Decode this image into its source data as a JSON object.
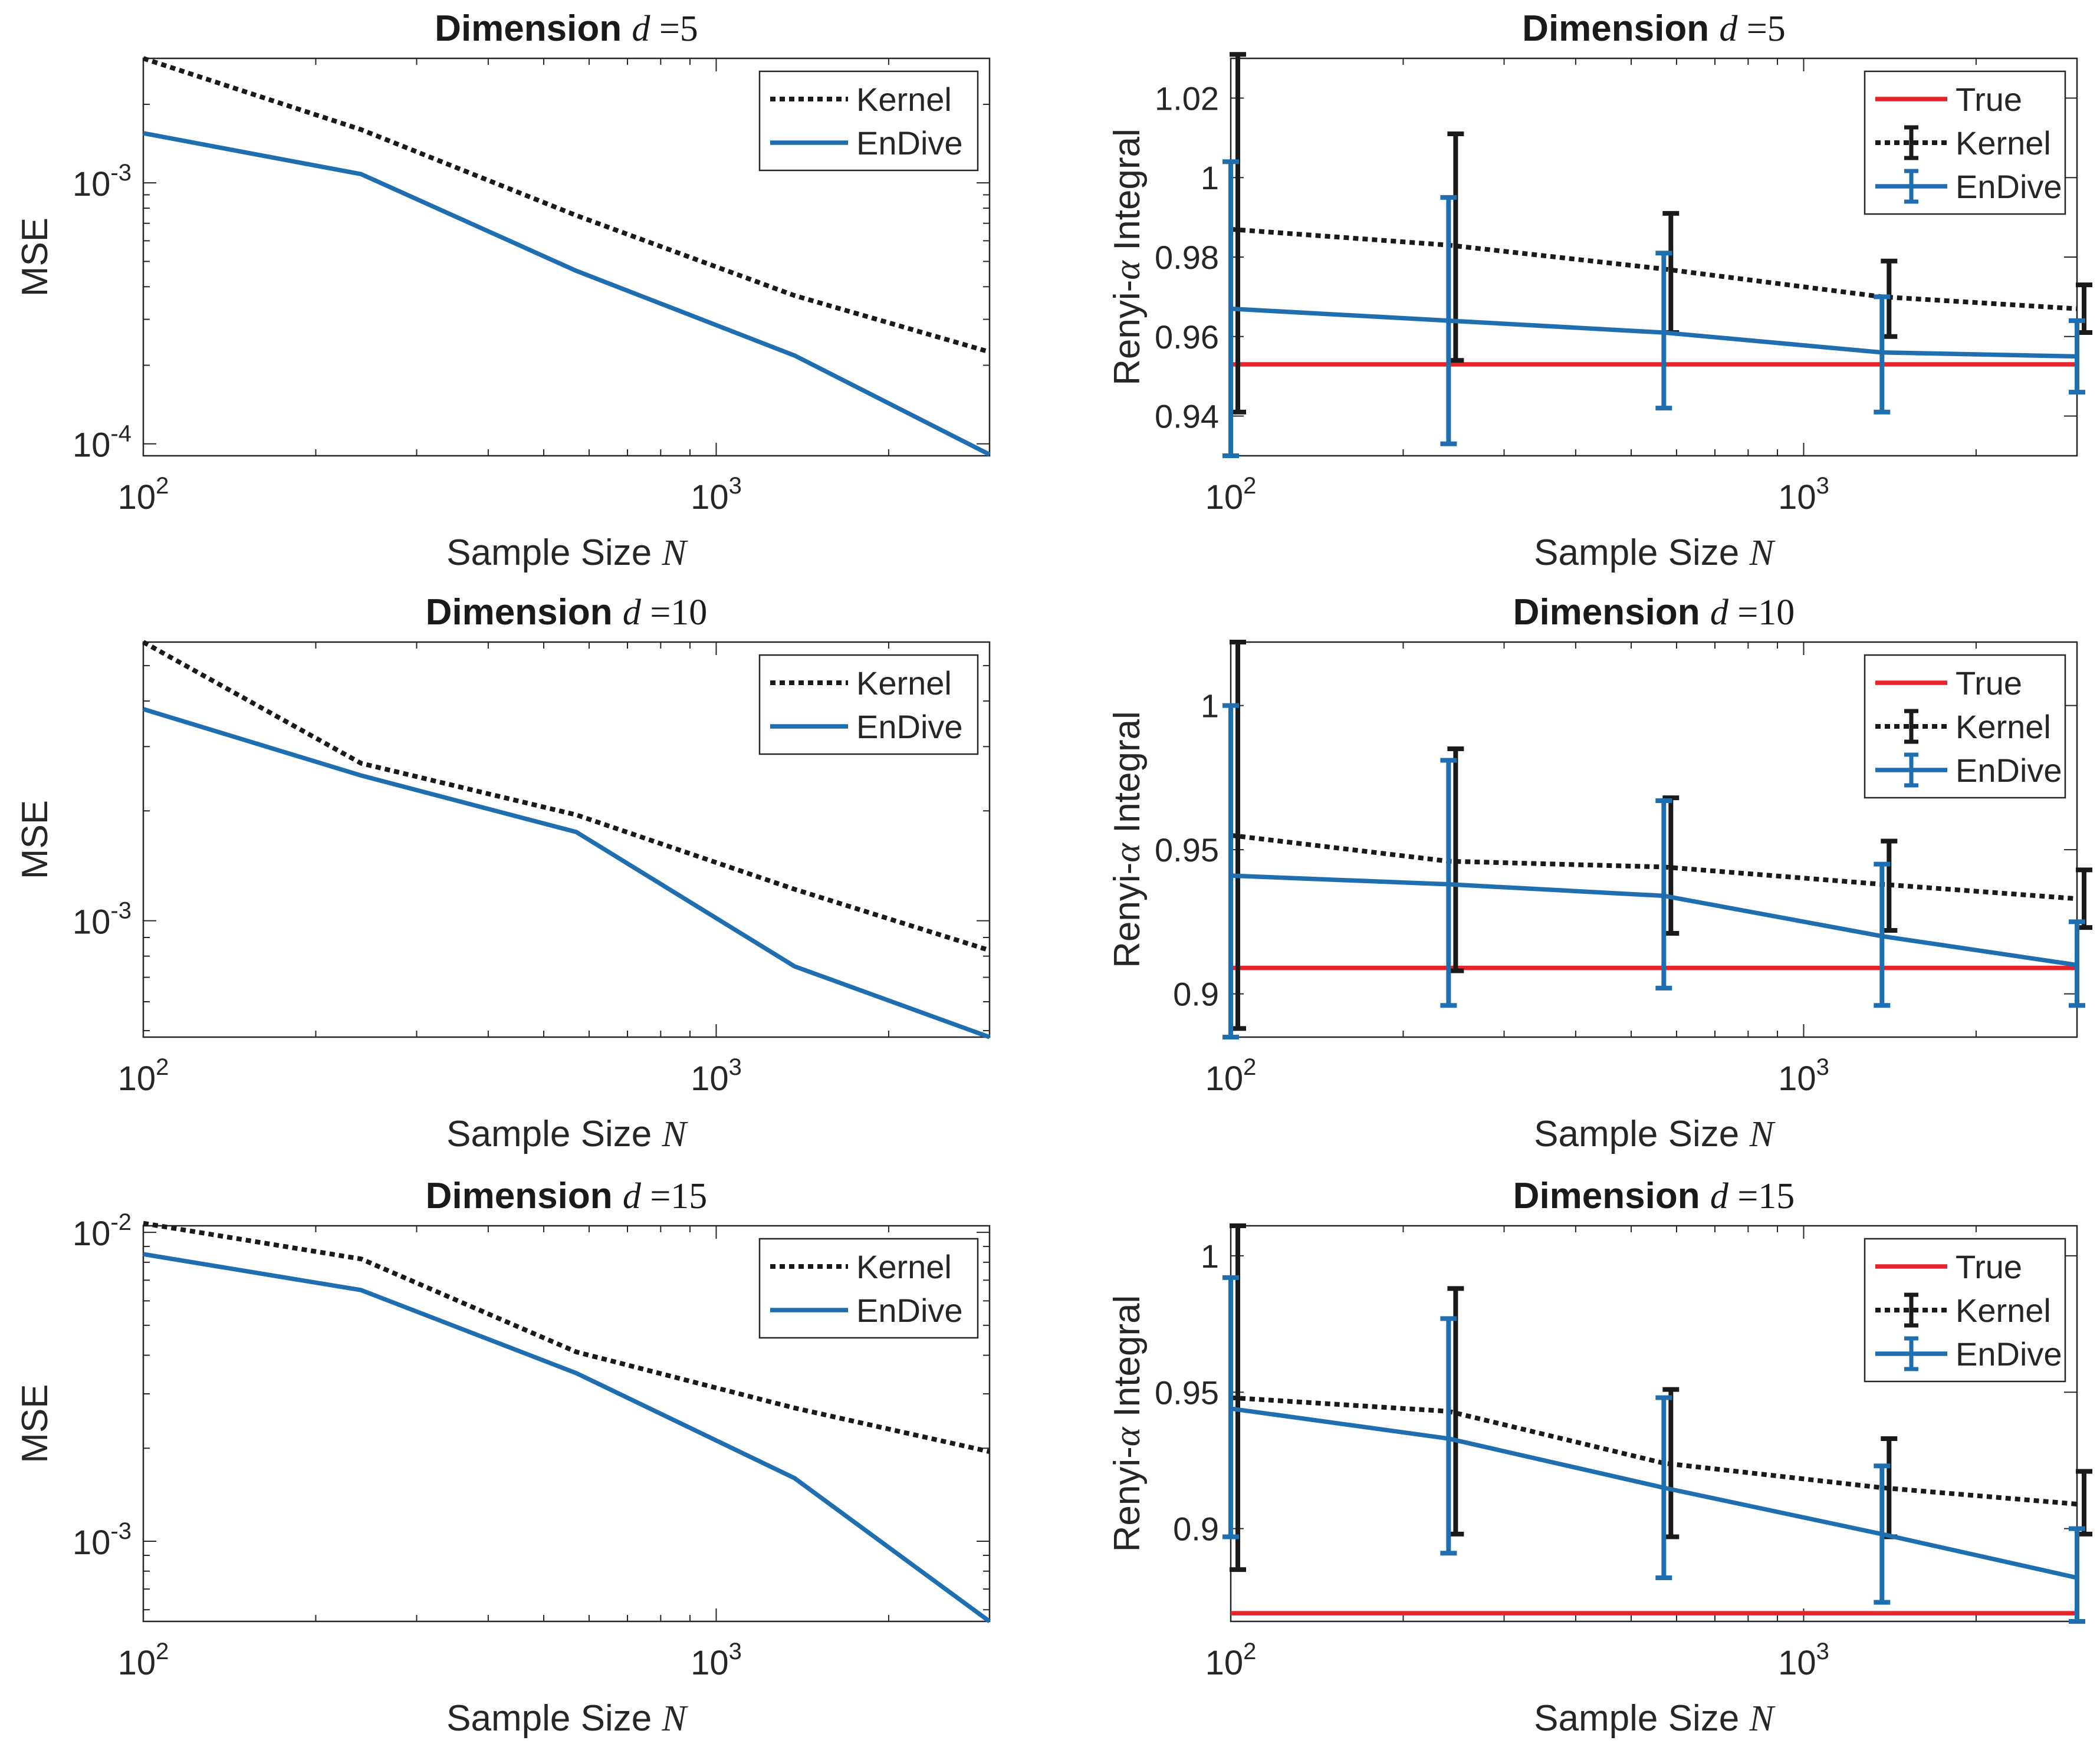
{
  "colors": {
    "true": "#e8242a",
    "kernel": "#1a1a1a",
    "endive": "#1f6fb0",
    "axis": "#262626"
  },
  "chart_data": [
    {
      "type": "line",
      "scale": "loglog",
      "title": "Dimension",
      "title_var": "d",
      "title_val": "=5",
      "xlabel": "Sample Size",
      "xlabel_var": "N",
      "ylabel": "MSE",
      "xlim": [
        100,
        3000
      ],
      "ylim": [
        9e-05,
        0.003
      ],
      "x_ticks": [
        {
          "base": "10",
          "exp": "2"
        },
        {
          "base": "10",
          "exp": "3"
        }
      ],
      "y_ticks": [
        {
          "base": "10",
          "exp": "-4"
        },
        {
          "base": "10",
          "exp": "-3"
        }
      ],
      "legend": "top-right",
      "x": [
        100,
        240,
        570,
        1370,
        3000
      ],
      "series": [
        {
          "name": "Kernel",
          "style": "dotted",
          "values": [
            0.003,
            0.0016,
            0.00075,
            0.00037,
            0.000225
          ]
        },
        {
          "name": "EnDive",
          "style": "solid",
          "values": [
            0.00155,
            0.00108,
            0.00046,
            0.000218,
            9.1e-05
          ]
        }
      ]
    },
    {
      "type": "line",
      "scale": "logx",
      "title": "Dimension",
      "title_var": "d",
      "title_val": "=5",
      "xlabel": "Sample Size",
      "xlabel_var": "N",
      "ylabel": "Renyi-",
      "ylabel_var": "α",
      "ylabel_rest": " Integral",
      "xlim": [
        100,
        3000
      ],
      "ylim": [
        0.93,
        1.03
      ],
      "x_ticks": [
        {
          "base": "10",
          "exp": "2"
        },
        {
          "base": "10",
          "exp": "3"
        }
      ],
      "y_ticks": [
        "0.94",
        "0.96",
        "0.98",
        "1",
        "1.02"
      ],
      "legend": "top-right",
      "x": [
        100,
        240,
        570,
        1370,
        3000
      ],
      "series": [
        {
          "name": "True",
          "style": "solid-red",
          "values": [
            0.953,
            0.953,
            0.953,
            0.953,
            0.953
          ]
        },
        {
          "name": "Kernel",
          "style": "dotted",
          "values": [
            0.987,
            0.983,
            0.977,
            0.97,
            0.967
          ],
          "err_low": [
            0.941,
            0.954,
            0.961,
            0.96,
            0.961
          ],
          "err_high": [
            1.031,
            1.011,
            0.991,
            0.979,
            0.973
          ]
        },
        {
          "name": "EnDive",
          "style": "solid",
          "values": [
            0.967,
            0.964,
            0.961,
            0.956,
            0.955
          ],
          "err_low": [
            0.93,
            0.933,
            0.942,
            0.941,
            0.946
          ],
          "err_high": [
            1.004,
            0.995,
            0.981,
            0.97,
            0.964
          ]
        }
      ]
    },
    {
      "type": "line",
      "scale": "loglog",
      "title": "Dimension",
      "title_var": "d",
      "title_val": "=10",
      "xlabel": "Sample Size",
      "xlabel_var": "N",
      "ylabel": "MSE",
      "xlim": [
        100,
        3000
      ],
      "ylim": [
        0.00048,
        0.0058
      ],
      "x_ticks": [
        {
          "base": "10",
          "exp": "2"
        },
        {
          "base": "10",
          "exp": "3"
        }
      ],
      "y_ticks": [
        {
          "base": "10",
          "exp": "-3"
        }
      ],
      "legend": "top-right",
      "x": [
        100,
        240,
        570,
        1370,
        3000
      ],
      "series": [
        {
          "name": "Kernel",
          "style": "dotted",
          "values": [
            0.0058,
            0.0027,
            0.00195,
            0.00122,
            0.00083
          ]
        },
        {
          "name": "EnDive",
          "style": "solid",
          "values": [
            0.0038,
            0.0025,
            0.00175,
            0.00075,
            0.00048
          ]
        }
      ]
    },
    {
      "type": "line",
      "scale": "logx",
      "title": "Dimension",
      "title_var": "d",
      "title_val": "=10",
      "xlabel": "Sample Size",
      "xlabel_var": "N",
      "ylabel": "Renyi-",
      "ylabel_var": "α",
      "ylabel_rest": " Integral",
      "xlim": [
        100,
        3000
      ],
      "ylim": [
        0.885,
        1.022
      ],
      "x_ticks": [
        {
          "base": "10",
          "exp": "2"
        },
        {
          "base": "10",
          "exp": "3"
        }
      ],
      "y_ticks": [
        "0.9",
        "0.95",
        "1"
      ],
      "legend": "top-right",
      "x": [
        100,
        240,
        570,
        1370,
        3000
      ],
      "series": [
        {
          "name": "True",
          "style": "solid-red",
          "values": [
            0.909,
            0.909,
            0.909,
            0.909,
            0.909
          ]
        },
        {
          "name": "Kernel",
          "style": "dotted",
          "values": [
            0.955,
            0.946,
            0.944,
            0.938,
            0.933
          ],
          "err_low": [
            0.888,
            0.908,
            0.921,
            0.922,
            0.923
          ],
          "err_high": [
            1.022,
            0.985,
            0.968,
            0.953,
            0.943
          ]
        },
        {
          "name": "EnDive",
          "style": "solid",
          "values": [
            0.941,
            0.938,
            0.934,
            0.92,
            0.91
          ],
          "err_low": [
            0.885,
            0.896,
            0.902,
            0.896,
            0.896
          ],
          "err_high": [
            1.0,
            0.981,
            0.967,
            0.945,
            0.925
          ]
        }
      ]
    },
    {
      "type": "line",
      "scale": "loglog",
      "title": "Dimension",
      "title_var": "d",
      "title_val": "=15",
      "xlabel": "Sample Size",
      "xlabel_var": "N",
      "ylabel": "MSE",
      "xlim": [
        100,
        3000
      ],
      "ylim": [
        0.00055,
        0.0105
      ],
      "x_ticks": [
        {
          "base": "10",
          "exp": "2"
        },
        {
          "base": "10",
          "exp": "3"
        }
      ],
      "y_ticks": [
        {
          "base": "10",
          "exp": "-3"
        },
        {
          "base": "10",
          "exp": "-2"
        }
      ],
      "legend": "top-right",
      "x": [
        100,
        240,
        570,
        1370,
        3000
      ],
      "series": [
        {
          "name": "Kernel",
          "style": "dotted",
          "values": [
            0.0107,
            0.0082,
            0.0041,
            0.0027,
            0.00195
          ]
        },
        {
          "name": "EnDive",
          "style": "solid",
          "values": [
            0.0085,
            0.0065,
            0.0035,
            0.0016,
            0.00055
          ]
        }
      ]
    },
    {
      "type": "line",
      "scale": "logx",
      "title": "Dimension",
      "title_var": "d",
      "title_val": "=15",
      "xlabel": "Sample Size",
      "xlabel_var": "N",
      "ylabel": "Renyi-",
      "ylabel_var": "α",
      "ylabel_rest": " Integral",
      "xlim": [
        100,
        3000
      ],
      "ylim": [
        0.866,
        1.011
      ],
      "x_ticks": [
        {
          "base": "10",
          "exp": "2"
        },
        {
          "base": "10",
          "exp": "3"
        }
      ],
      "y_ticks": [
        "0.9",
        "0.95",
        "1"
      ],
      "legend": "top-right",
      "x": [
        100,
        240,
        570,
        1370,
        3000
      ],
      "series": [
        {
          "name": "True",
          "style": "solid-red",
          "values": [
            0.869,
            0.869,
            0.869,
            0.869,
            0.869
          ]
        },
        {
          "name": "Kernel",
          "style": "dotted",
          "values": [
            0.948,
            0.943,
            0.924,
            0.915,
            0.909
          ],
          "err_low": [
            0.885,
            0.898,
            0.897,
            0.897,
            0.898
          ],
          "err_high": [
            1.011,
            0.988,
            0.951,
            0.933,
            0.921
          ]
        },
        {
          "name": "EnDive",
          "style": "solid",
          "values": [
            0.944,
            0.933,
            0.915,
            0.898,
            0.882
          ],
          "err_low": [
            0.897,
            0.891,
            0.882,
            0.873,
            0.866
          ],
          "err_high": [
            0.992,
            0.977,
            0.948,
            0.923,
            0.9
          ]
        }
      ]
    }
  ]
}
